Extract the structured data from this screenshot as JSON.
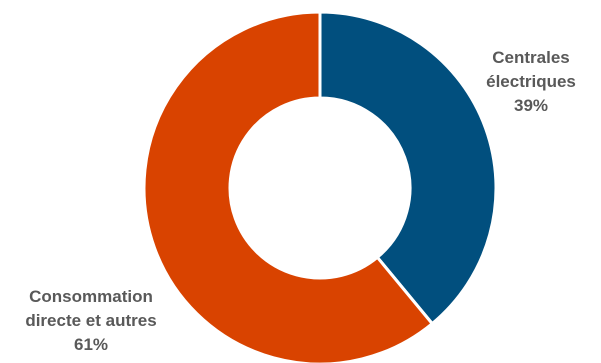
{
  "chart_data": {
    "type": "pie",
    "donut": true,
    "title": "",
    "start_angle_deg": 0,
    "direction": "clockwise",
    "slices": [
      {
        "label_lines": [
          "Centrales",
          "électriques"
        ],
        "value_label": "39%",
        "value": 39,
        "color": "#014F7E"
      },
      {
        "label_lines": [
          "Consommation",
          "directe et autres"
        ],
        "value_label": "61%",
        "value": 61,
        "color": "#D94300"
      }
    ],
    "separator_color": "#FFFFFF"
  }
}
